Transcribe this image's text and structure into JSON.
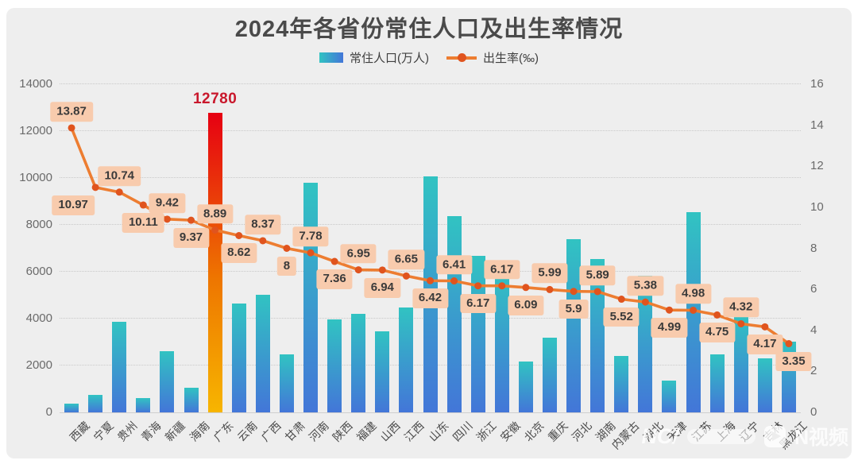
{
  "title": "2024年各省份常住人口及出生率情况",
  "legend": {
    "bar_label": "常住人口(万人)",
    "line_label": "出生率(‰)"
  },
  "watermark": {
    "logo_text": "NC/",
    "brand_text": "N视频"
  },
  "colors": {
    "background": "#eeeeee",
    "title_text": "#4a4a4a",
    "bar_gradient_top": "#31c3c2",
    "bar_gradient_bottom": "#4376d8",
    "highlight_gradient_top": "#e60012",
    "highlight_gradient_mid": "#ee7500",
    "highlight_gradient_bottom": "#f7b500",
    "line": "#ed7d31",
    "marker": "#e0541e",
    "point_label_bg": "#f8cbad",
    "point_label_text": "#3a3a3a",
    "highlight_value_text": "#c9182c",
    "axis_text": "#6a6a6a",
    "category_text": "#4a4a4a",
    "gridline": "#c9c9c9"
  },
  "chart_data": {
    "type": "bar+line",
    "categories": [
      "西藏",
      "宁夏",
      "贵州",
      "青海",
      "新疆",
      "海南",
      "广东",
      "云南",
      "广西",
      "甘肃",
      "河南",
      "陕西",
      "福建",
      "山西",
      "江西",
      "山东",
      "四川",
      "浙江",
      "安徽",
      "北京",
      "重庆",
      "河北",
      "湖南",
      "内蒙古",
      "湖北",
      "天津",
      "江苏",
      "上海",
      "辽宁",
      "吉林",
      "黑龙江"
    ],
    "series": [
      {
        "name": "常住人口(万人)",
        "type": "bar",
        "axis": "left",
        "values": [
          368,
          730,
          3865,
          595,
          2598,
          1048,
          12780,
          4635,
          5021,
          2458,
          9785,
          3954,
          4193,
          3442,
          4488,
          10080,
          8368,
          6670,
          6110,
          2183,
          3190,
          7393,
          6550,
          2396,
          5825,
          1364,
          8526,
          2480,
          4169,
          2317,
          3029
        ]
      },
      {
        "name": "出生率(‰)",
        "type": "line",
        "axis": "right",
        "values": [
          13.87,
          10.97,
          10.74,
          10.11,
          9.42,
          9.37,
          8.89,
          8.62,
          8.37,
          8,
          7.78,
          7.36,
          6.95,
          6.94,
          6.65,
          6.42,
          6.41,
          6.17,
          6.17,
          6.09,
          5.99,
          5.9,
          5.89,
          5.52,
          5.38,
          4.99,
          4.98,
          4.75,
          4.32,
          4.17,
          3.35
        ]
      }
    ],
    "highlight": {
      "category": "广东",
      "bar_value_label": "12780"
    },
    "left_axis": {
      "min": 0,
      "max": 14000,
      "step": 2000,
      "ticks": [
        0,
        2000,
        4000,
        6000,
        8000,
        10000,
        12000,
        14000
      ]
    },
    "right_axis": {
      "min": 0,
      "max": 16,
      "step": 2,
      "ticks": [
        0,
        2,
        4,
        6,
        8,
        10,
        12,
        14,
        16
      ]
    },
    "grid": "horizontal dotted",
    "legend_position": "top center"
  }
}
